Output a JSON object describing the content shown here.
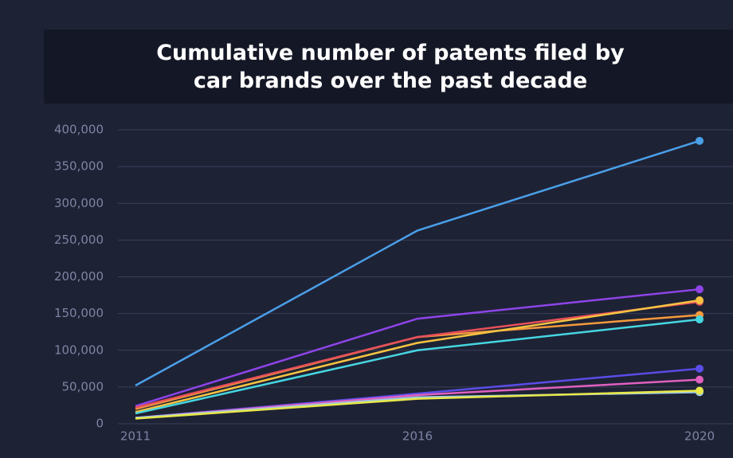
{
  "chart_data": {
    "type": "line",
    "title": [
      "Cumulative number of patents filed by",
      "car brands over the past decade"
    ],
    "categories": [
      "2011",
      "2016",
      "2020"
    ],
    "series": [
      {
        "color": "#4a9fe8",
        "values": [
          52000,
          263000,
          385000
        ]
      },
      {
        "color": "#8e44e8",
        "values": [
          24000,
          143000,
          183000
        ]
      },
      {
        "color": "#f59a3c",
        "values": [
          20000,
          118000,
          148000
        ]
      },
      {
        "color": "#e8505a",
        "values": [
          22000,
          118000,
          166000
        ]
      },
      {
        "color": "#f5c342",
        "values": [
          16000,
          110000,
          168000
        ]
      },
      {
        "color": "#46d6e0",
        "values": [
          14000,
          100000,
          142000
        ]
      },
      {
        "color": "#5a4de8",
        "values": [
          8000,
          41000,
          75000
        ]
      },
      {
        "color": "#e060c0",
        "values": [
          8000,
          39000,
          60000
        ]
      },
      {
        "color": "#9ac8e8",
        "values": [
          8000,
          36000,
          43000
        ]
      },
      {
        "color": "#e8e84a",
        "values": [
          7000,
          34000,
          45000
        ]
      }
    ],
    "ylim": [
      0,
      400000
    ],
    "yticks": [
      0,
      {
        "value": 50000,
        "label": "50,000"
      },
      {
        "value": 100000,
        "label": "100,000"
      },
      {
        "value": 150000,
        "label": "150,000"
      },
      {
        "value": 200000,
        "label": "200,000"
      },
      {
        "value": 250000,
        "label": "250,000"
      },
      {
        "value": 300000,
        "label": "300,000"
      },
      {
        "value": 350000,
        "label": "350,000"
      },
      {
        "value": 400000,
        "label": "400,000"
      }
    ],
    "grid": true
  }
}
